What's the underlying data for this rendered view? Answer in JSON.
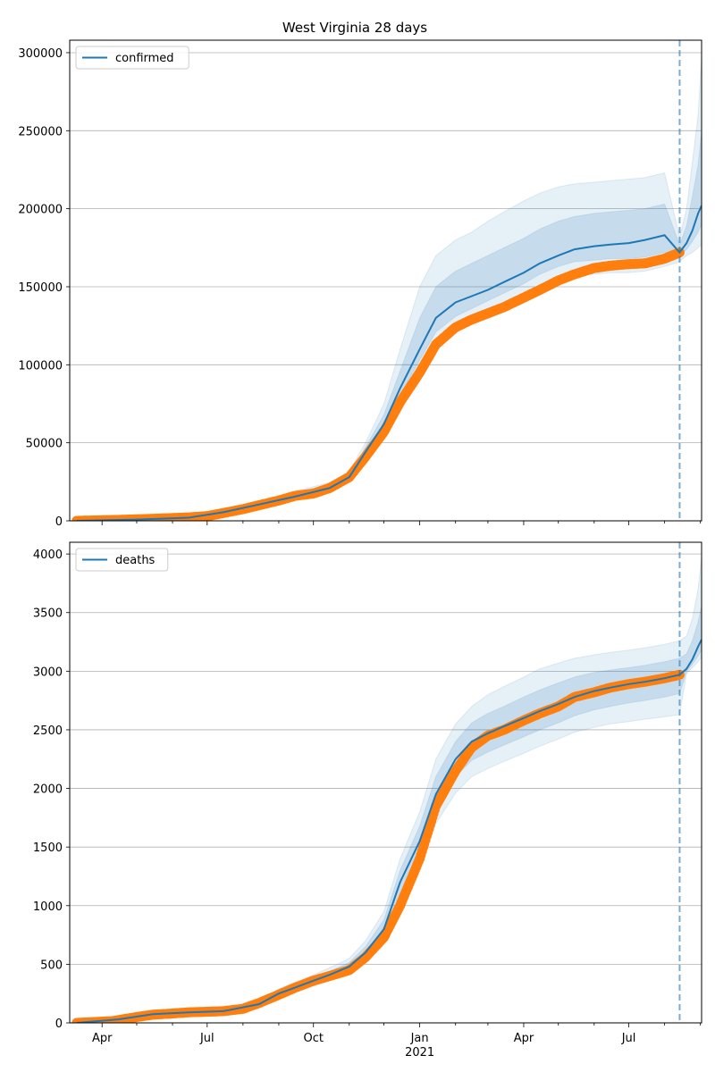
{
  "title": "West Virginia 28 days",
  "colors": {
    "model": "#1f77b4",
    "observed": "#ff7f0e",
    "band": "#1f77b4",
    "grid": "#b0b0b0"
  },
  "x_ticks": [
    {
      "date": "2020-04-01",
      "label": "Apr"
    },
    {
      "date": "2020-07-01",
      "label": "Jul"
    },
    {
      "date": "2020-10-01",
      "label": "Oct"
    },
    {
      "date": "2021-01-01",
      "label": "Jan",
      "sublabel": "2021"
    },
    {
      "date": "2021-04-01",
      "label": "Apr"
    },
    {
      "date": "2021-07-01",
      "label": "Jul"
    }
  ],
  "chart_data": [
    {
      "type": "line",
      "legend": "confirmed",
      "legend_position": "upper-left",
      "grid": "horizontal",
      "xlim": [
        "2020-03-04",
        "2021-09-02"
      ],
      "ylim": [
        0,
        308000
      ],
      "y_ticks": [
        0,
        50000,
        100000,
        150000,
        200000,
        250000,
        300000
      ],
      "forecast_start": "2021-08-14",
      "model": {
        "x": [
          "2020-03-10",
          "2020-05-01",
          "2020-06-15",
          "2020-07-15",
          "2020-08-15",
          "2020-09-15",
          "2020-10-15",
          "2020-11-01",
          "2020-11-15",
          "2020-12-01",
          "2020-12-15",
          "2021-01-01",
          "2021-01-15",
          "2021-02-01",
          "2021-02-15",
          "2021-03-01",
          "2021-03-15",
          "2021-04-01",
          "2021-04-15",
          "2021-05-01",
          "2021-05-15",
          "2021-06-01",
          "2021-06-15",
          "2021-07-01",
          "2021-07-15",
          "2021-08-01",
          "2021-08-14",
          "2021-08-20",
          "2021-08-25",
          "2021-08-30",
          "2021-09-02"
        ],
        "y": [
          0,
          800,
          2000,
          5500,
          10500,
          15500,
          21000,
          28000,
          44000,
          62000,
          85000,
          110000,
          130000,
          140000,
          144000,
          148000,
          153000,
          159000,
          165000,
          170000,
          174000,
          176000,
          177000,
          178000,
          180000,
          183000,
          172000,
          178000,
          186000,
          197000,
          202000
        ]
      },
      "band_outer": {
        "upper": [
          0,
          900,
          2300,
          6500,
          12500,
          19000,
          24500,
          32000,
          50000,
          75000,
          110000,
          150000,
          170000,
          180000,
          185000,
          192000,
          198000,
          205000,
          210000,
          214000,
          216000,
          217000,
          218000,
          219000,
          220000,
          223000,
          182000,
          200000,
          230000,
          260000,
          298000
        ],
        "lower": [
          0,
          700,
          1800,
          4800,
          9000,
          13500,
          18000,
          26000,
          40000,
          56000,
          76000,
          96000,
          112000,
          122000,
          129000,
          135000,
          140000,
          145000,
          150000,
          155000,
          158000,
          158000,
          159000,
          159000,
          160000,
          163000,
          166000,
          170000,
          172000,
          175000,
          177000
        ]
      },
      "band_inner": {
        "upper": [
          0,
          850,
          2150,
          6000,
          11500,
          17500,
          23000,
          30000,
          47000,
          68000,
          96000,
          130000,
          150000,
          160000,
          165000,
          170000,
          175000,
          181000,
          187000,
          192000,
          195000,
          197000,
          198000,
          199000,
          200000,
          203000,
          177000,
          189000,
          208000,
          228000,
          250000
        ],
        "lower": [
          0,
          750,
          1900,
          5100,
          9700,
          14500,
          19500,
          27000,
          42000,
          59000,
          80000,
          103000,
          121000,
          131000,
          136000,
          141000,
          146000,
          152000,
          158000,
          163000,
          166000,
          167000,
          168000,
          168000,
          169000,
          172000,
          169000,
          174000,
          179000,
          185000,
          190000
        ]
      },
      "observed": {
        "x": [
          "2020-03-10",
          "2020-04-15",
          "2020-05-15",
          "2020-06-15",
          "2020-07-01",
          "2020-07-15",
          "2020-08-01",
          "2020-08-15",
          "2020-09-01",
          "2020-09-15",
          "2020-10-01",
          "2020-10-15",
          "2020-11-01",
          "2020-11-15",
          "2020-12-01",
          "2020-12-15",
          "2021-01-01",
          "2021-01-15",
          "2021-02-01",
          "2021-02-15",
          "2021-03-01",
          "2021-03-15",
          "2021-04-01",
          "2021-04-15",
          "2021-05-01",
          "2021-05-15",
          "2021-06-01",
          "2021-06-15",
          "2021-07-01",
          "2021-07-15",
          "2021-08-01",
          "2021-08-14"
        ],
        "y": [
          0,
          600,
          1300,
          2200,
          3000,
          5000,
          7500,
          10000,
          13000,
          16000,
          17500,
          21000,
          28000,
          41000,
          57000,
          76000,
          95000,
          113000,
          124000,
          129000,
          133000,
          137000,
          143000,
          148000,
          154000,
          158000,
          162000,
          163500,
          164500,
          165000,
          168000,
          172000
        ]
      }
    },
    {
      "type": "line",
      "legend": "deaths",
      "legend_position": "upper-left",
      "grid": "horizontal",
      "xlim": [
        "2020-03-04",
        "2021-09-02"
      ],
      "ylim": [
        0,
        4100
      ],
      "y_ticks": [
        0,
        500,
        1000,
        1500,
        2000,
        2500,
        3000,
        3500,
        4000
      ],
      "forecast_start": "2021-08-14",
      "model": {
        "x": [
          "2020-03-10",
          "2020-04-15",
          "2020-05-15",
          "2020-06-15",
          "2020-07-15",
          "2020-08-15",
          "2020-09-01",
          "2020-09-15",
          "2020-10-01",
          "2020-10-15",
          "2020-11-01",
          "2020-11-15",
          "2020-12-01",
          "2020-12-15",
          "2021-01-01",
          "2021-01-15",
          "2021-02-01",
          "2021-02-15",
          "2021-03-01",
          "2021-03-15",
          "2021-04-01",
          "2021-04-15",
          "2021-05-01",
          "2021-05-15",
          "2021-06-01",
          "2021-06-15",
          "2021-07-01",
          "2021-07-15",
          "2021-08-01",
          "2021-08-14",
          "2021-08-20",
          "2021-08-25",
          "2021-08-30",
          "2021-09-02"
        ],
        "y": [
          0,
          30,
          75,
          90,
          100,
          160,
          250,
          300,
          360,
          410,
          480,
          600,
          800,
          1200,
          1550,
          1950,
          2250,
          2400,
          2470,
          2530,
          2600,
          2660,
          2720,
          2780,
          2830,
          2860,
          2890,
          2910,
          2940,
          2970,
          3020,
          3100,
          3210,
          3270
        ]
      },
      "band_outer": {
        "upper": [
          0,
          35,
          85,
          100,
          115,
          190,
          290,
          345,
          410,
          470,
          550,
          700,
          950,
          1400,
          1800,
          2250,
          2550,
          2700,
          2800,
          2870,
          2950,
          3020,
          3070,
          3110,
          3140,
          3160,
          3180,
          3200,
          3230,
          3260,
          3300,
          3450,
          3700,
          3980
        ],
        "lower": [
          0,
          25,
          65,
          80,
          88,
          140,
          215,
          260,
          315,
          360,
          420,
          520,
          690,
          1020,
          1330,
          1700,
          1960,
          2100,
          2170,
          2230,
          2300,
          2360,
          2420,
          2480,
          2520,
          2550,
          2570,
          2590,
          2610,
          2630,
          2980,
          3030,
          3080,
          3120
        ]
      },
      "band_inner": {
        "upper": [
          0,
          32,
          80,
          95,
          108,
          175,
          270,
          320,
          385,
          440,
          515,
          650,
          880,
          1300,
          1680,
          2100,
          2400,
          2560,
          2640,
          2700,
          2780,
          2840,
          2900,
          2950,
          2990,
          3010,
          3030,
          3050,
          3080,
          3110,
          3150,
          3260,
          3420,
          3560
        ],
        "lower": [
          0,
          28,
          70,
          85,
          93,
          150,
          232,
          280,
          336,
          385,
          450,
          560,
          740,
          1100,
          1430,
          1820,
          2100,
          2240,
          2310,
          2370,
          2440,
          2500,
          2560,
          2620,
          2670,
          2700,
          2730,
          2750,
          2780,
          2810,
          2995,
          3060,
          3130,
          3180
        ]
      },
      "observed": {
        "x": [
          "2020-03-10",
          "2020-04-10",
          "2020-05-01",
          "2020-05-15",
          "2020-06-01",
          "2020-06-15",
          "2020-07-01",
          "2020-07-15",
          "2020-08-01",
          "2020-08-15",
          "2020-09-01",
          "2020-09-15",
          "2020-10-01",
          "2020-10-15",
          "2020-11-01",
          "2020-11-15",
          "2020-12-01",
          "2020-12-15",
          "2021-01-01",
          "2021-01-15",
          "2021-02-01",
          "2021-02-15",
          "2021-03-01",
          "2021-03-15",
          "2021-04-01",
          "2021-04-15",
          "2021-05-01",
          "2021-05-15",
          "2021-06-01",
          "2021-06-15",
          "2021-07-01",
          "2021-07-15",
          "2021-08-01",
          "2021-08-14"
        ],
        "y": [
          0,
          15,
          50,
          70,
          80,
          90,
          95,
          100,
          120,
          170,
          240,
          300,
          360,
          400,
          450,
          560,
          730,
          1000,
          1400,
          1850,
          2150,
          2350,
          2450,
          2500,
          2580,
          2640,
          2700,
          2780,
          2820,
          2860,
          2890,
          2910,
          2940,
          2970
        ]
      }
    }
  ]
}
